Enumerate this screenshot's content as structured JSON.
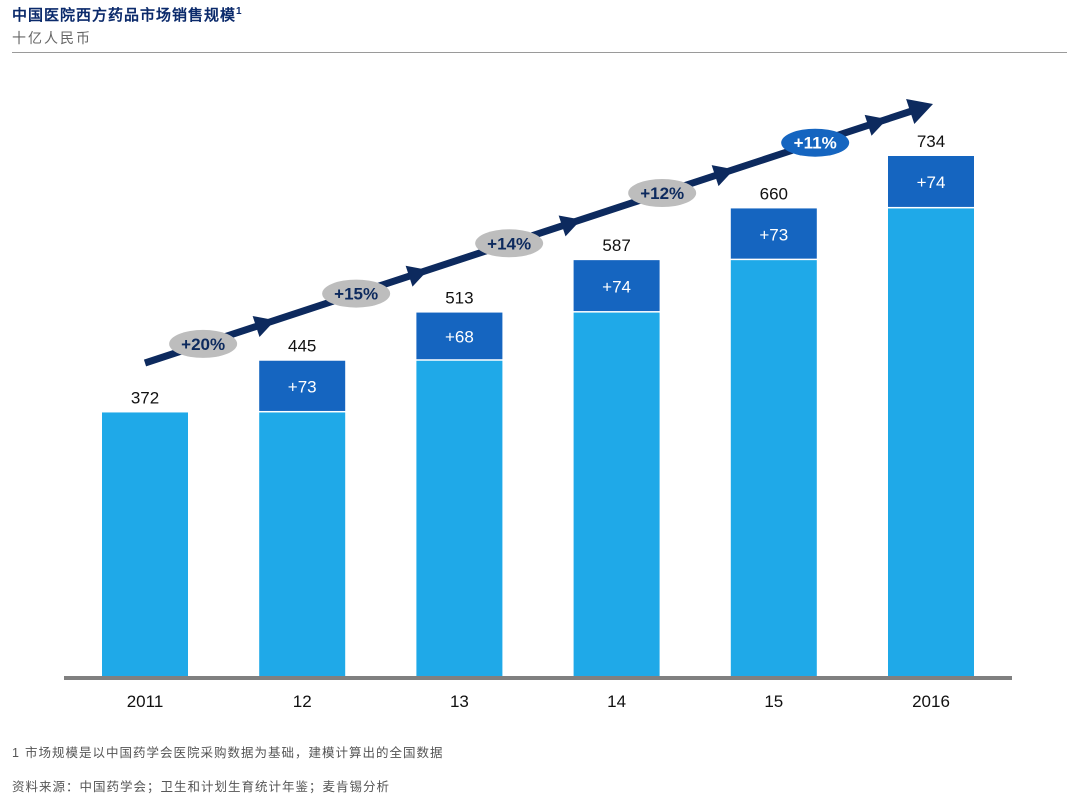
{
  "header": {
    "title": "中国医院西方药品市场销售规模",
    "title_sup": "1",
    "subtitle": "十亿人民币"
  },
  "colors": {
    "base": "#1fa9e8",
    "increment": "#1565c0",
    "arrow": "#0d2a5e",
    "growth_label_bg": "#bdbdbd",
    "growth_label_bg_last": "#1565c0",
    "axis": "#808080"
  },
  "chart_data": {
    "type": "bar",
    "stacked": true,
    "title": "中国医院西方药品市场销售规模",
    "ylabel": "十亿人民币",
    "categories": [
      "2011",
      "12",
      "13",
      "14",
      "15",
      "2016"
    ],
    "totals": [
      "372",
      "445",
      "513",
      "587",
      "660",
      "734"
    ],
    "series": [
      {
        "name": "base",
        "values": [
          372,
          372,
          445,
          513,
          587,
          660
        ]
      },
      {
        "name": "increment",
        "values": [
          0,
          73,
          68,
          74,
          73,
          74
        ]
      }
    ],
    "increment_labels": [
      "",
      "+73",
      "+68",
      "+74",
      "+73",
      "+74"
    ],
    "growth_labels": [
      "+20%",
      "+15%",
      "+14%",
      "+12%",
      "+11%"
    ],
    "ylim": [
      0,
      734
    ]
  },
  "footer": {
    "footnote_num": "1",
    "footnote": "市场规模是以中国药学会医院采购数据为基础，建模计算出的全国数据",
    "source": "资料来源：中国药学会；卫生和计划生育统计年鉴；麦肯锡分析"
  }
}
